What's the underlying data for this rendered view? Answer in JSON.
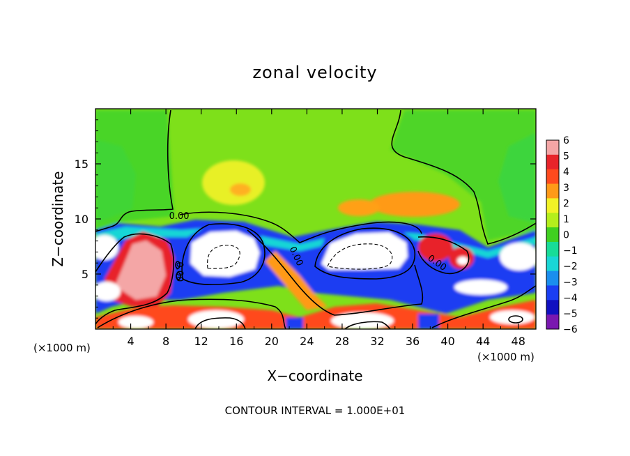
{
  "chart_data": {
    "type": "heatmap",
    "title": "zonal velocity",
    "xlabel": "X−coordinate",
    "ylabel": "Z−coordinate",
    "x_unit_left": "(×1000 m)",
    "x_unit_right": "(×1000 m)",
    "footnote": "CONTOUR INTERVAL = 1.000E+01",
    "xlim": [
      0,
      50
    ],
    "ylim": [
      0,
      20
    ],
    "x_ticks": [
      4,
      8,
      12,
      16,
      20,
      24,
      28,
      32,
      36,
      40,
      44,
      48
    ],
    "x_tick_labels": [
      "4",
      "8",
      "12",
      "16",
      "20",
      "24",
      "28",
      "32",
      "36",
      "40",
      "44",
      "48"
    ],
    "y_ticks": [
      5,
      10,
      15
    ],
    "y_tick_labels": [
      "5",
      "10",
      "15"
    ],
    "colorbar": {
      "levels": [
        6,
        5,
        4,
        3,
        2,
        1,
        0,
        -1,
        -2,
        -3,
        -4,
        -5,
        -6
      ],
      "labels": [
        "6",
        "5",
        "4",
        "3",
        "2",
        "1",
        "0",
        "−1",
        "−2",
        "−3",
        "−4",
        "−5",
        "−6"
      ],
      "colors": [
        "#f4a6a6",
        "#e8242a",
        "#ff4a1e",
        "#ff9a18",
        "#f2f226",
        "#b4ee1c",
        "#40d020",
        "#18dc98",
        "#19d6d6",
        "#1a8eee",
        "#1a3ef2",
        "#1010c0",
        "#7a18b0"
      ]
    },
    "contour_labels": [
      {
        "text": "0.00",
        "x": 9.5,
        "y": 10.0,
        "rotate": 0
      },
      {
        "text": "0.00",
        "x": 22.5,
        "y": 6.5,
        "rotate": 65
      },
      {
        "text": "0.00",
        "x": 38.6,
        "y": 5.8,
        "rotate": 35
      },
      {
        "text": "0.00",
        "x": 9.2,
        "y": 5.2,
        "rotate": 90
      }
    ]
  }
}
